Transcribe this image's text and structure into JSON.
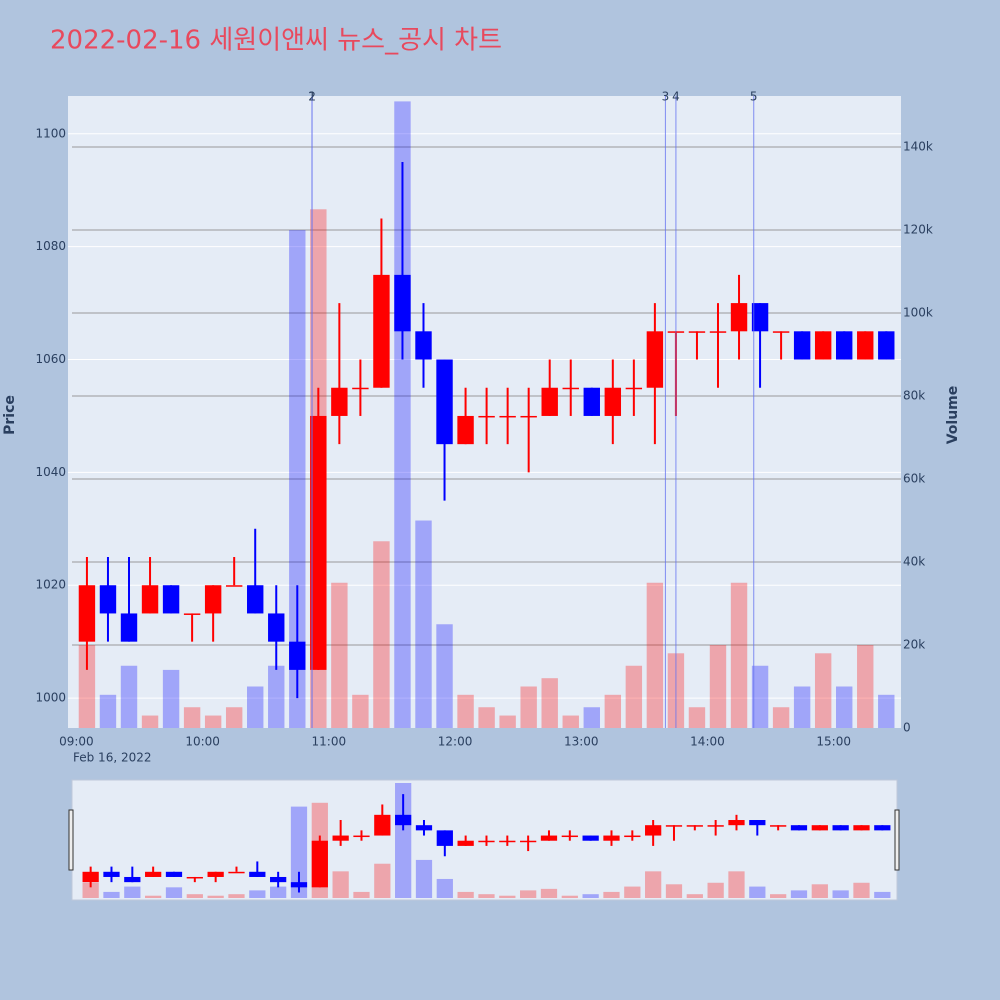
{
  "chart_data": {
    "type": "candlestick",
    "title": "2022-02-16 세원이앤씨 뉴스_공시 차트",
    "x": [
      "2022-02-16 09:00",
      "2022-02-16 09:10",
      "2022-02-16 09:20",
      "2022-02-16 09:30",
      "2022-02-16 09:40",
      "2022-02-16 09:50",
      "2022-02-16 10:00",
      "2022-02-16 10:10",
      "2022-02-16 10:20",
      "2022-02-16 10:30",
      "2022-02-16 10:40",
      "2022-02-16 10:50",
      "2022-02-16 11:00",
      "2022-02-16 11:10",
      "2022-02-16 11:20",
      "2022-02-16 11:30",
      "2022-02-16 11:40",
      "2022-02-16 11:50",
      "2022-02-16 12:00",
      "2022-02-16 12:10",
      "2022-02-16 12:20",
      "2022-02-16 12:30",
      "2022-02-16 12:40",
      "2022-02-16 12:50",
      "2022-02-16 13:00",
      "2022-02-16 13:10",
      "2022-02-16 13:20",
      "2022-02-16 13:30",
      "2022-02-16 13:40",
      "2022-02-16 13:50",
      "2022-02-16 14:00",
      "2022-02-16 14:10",
      "2022-02-16 14:20",
      "2022-02-16 14:30",
      "2022-02-16 14:40",
      "2022-02-16 14:50",
      "2022-02-16 15:00",
      "2022-02-16 15:10",
      "2022-02-16 15:20"
    ],
    "open": [
      1010,
      1020,
      1015,
      1015,
      1020,
      1015,
      1015,
      1020,
      1020,
      1015,
      1010,
      1005,
      1050,
      1055,
      1055,
      1075,
      1065,
      1060,
      1045,
      1050,
      1050,
      1050,
      1050,
      1055,
      1055,
      1050,
      1055,
      1055,
      1065,
      1065,
      1065,
      1065,
      1070,
      1065,
      1065,
      1060,
      1065,
      1060,
      1065
    ],
    "high": [
      1025,
      1025,
      1025,
      1025,
      1020,
      1015,
      1020,
      1025,
      1030,
      1020,
      1020,
      1055,
      1070,
      1060,
      1085,
      1095,
      1070,
      1060,
      1055,
      1055,
      1055,
      1055,
      1060,
      1060,
      1055,
      1060,
      1060,
      1070,
      1065,
      1065,
      1070,
      1075,
      1070,
      1065,
      1065,
      1065,
      1065,
      1065,
      1065
    ],
    "low": [
      1005,
      1010,
      1010,
      1015,
      1015,
      1010,
      1010,
      1020,
      1015,
      1005,
      1000,
      1005,
      1045,
      1050,
      1055,
      1060,
      1055,
      1035,
      1045,
      1045,
      1045,
      1040,
      1050,
      1050,
      1050,
      1045,
      1050,
      1045,
      1050,
      1060,
      1055,
      1060,
      1055,
      1060,
      1060,
      1060,
      1060,
      1060,
      1060
    ],
    "close": [
      1020,
      1015,
      1010,
      1020,
      1015,
      1015,
      1020,
      1020,
      1015,
      1010,
      1005,
      1050,
      1055,
      1055,
      1075,
      1065,
      1060,
      1045,
      1050,
      1050,
      1050,
      1050,
      1055,
      1055,
      1050,
      1055,
      1055,
      1065,
      1065,
      1065,
      1065,
      1070,
      1065,
      1065,
      1060,
      1065,
      1060,
      1065,
      1060
    ],
    "volume": [
      20000,
      8000,
      15000,
      3000,
      14000,
      5000,
      3000,
      5000,
      10000,
      15000,
      120000,
      125000,
      35000,
      8000,
      45000,
      151000,
      50000,
      25000,
      8000,
      5000,
      3000,
      10000,
      12000,
      3000,
      5000,
      8000,
      15000,
      35000,
      18000,
      5000,
      20000,
      35000,
      15000,
      5000,
      10000,
      18000,
      10000,
      20000,
      8000
    ],
    "up_color": "#ff0000",
    "down_color": "#0000ff",
    "xlim": [
      "2022-02-16 08:56",
      "2022-02-16 15:32"
    ],
    "xticks": [
      {
        "value": "2022-02-16 09:00",
        "label": "09:00"
      },
      {
        "value": "2022-02-16 10:00",
        "label": "10:00"
      },
      {
        "value": "2022-02-16 11:00",
        "label": "11:00"
      },
      {
        "value": "2022-02-16 12:00",
        "label": "12:00"
      },
      {
        "value": "2022-02-16 13:00",
        "label": "13:00"
      },
      {
        "value": "2022-02-16 14:00",
        "label": "14:00"
      },
      {
        "value": "2022-02-16 15:00",
        "label": "15:00"
      }
    ],
    "x_date_label": "Feb 16, 2022",
    "ylim": [
      994.7,
      1106.7
    ],
    "yticks": [
      1000,
      1020,
      1040,
      1060,
      1080,
      1100
    ],
    "y_label": "Price",
    "y2lim": [
      0,
      152300
    ],
    "y2ticks": [
      0,
      {
        "value": 20000,
        "label": "20k"
      },
      {
        "value": 40000,
        "label": "40k"
      },
      {
        "value": 60000,
        "label": "60k"
      },
      {
        "value": 80000,
        "label": "80k"
      },
      {
        "value": 100000,
        "label": "100k"
      },
      {
        "value": 120000,
        "label": "120k"
      },
      {
        "value": 140000,
        "label": "140k"
      }
    ],
    "y2_label": "Volume",
    "news": [
      {
        "x": "2022-02-16 10:52",
        "label": "1"
      },
      {
        "x": "2022-02-16 10:52",
        "label": "2"
      },
      {
        "x": "2022-02-16 13:40",
        "label": "3"
      },
      {
        "x": "2022-02-16 13:45",
        "label": "4"
      },
      {
        "x": "2022-02-16 14:22",
        "label": "5"
      }
    ],
    "grid": true
  }
}
